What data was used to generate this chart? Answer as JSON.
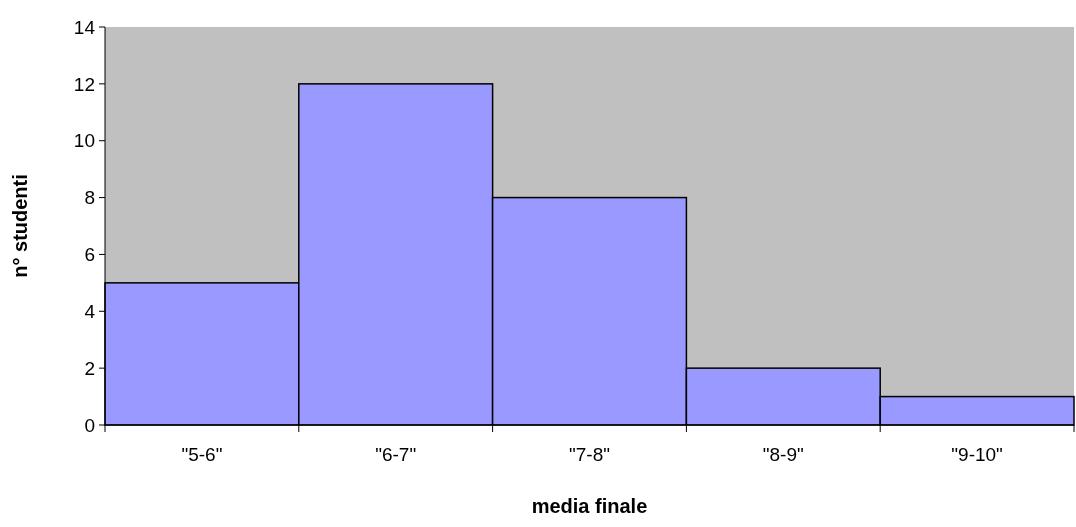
{
  "chart_data": {
    "type": "bar",
    "xlabel": "media finale",
    "ylabel": "n° studenti",
    "categories": [
      "\"5-6\"",
      "\"6-7\"",
      "\"7-8\"",
      "\"8-9\"",
      "\"9-10\""
    ],
    "values": [
      5,
      12,
      8,
      2,
      1
    ],
    "color": "#9999ff",
    "ylim": [
      0,
      14
    ],
    "yticks": [
      0,
      2,
      4,
      6,
      8,
      10,
      12,
      14
    ],
    "grid": false
  }
}
